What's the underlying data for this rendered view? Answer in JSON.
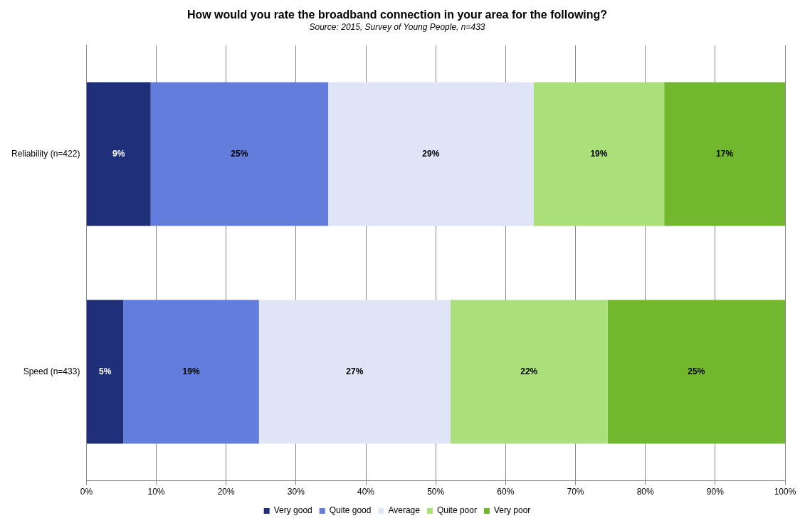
{
  "chart_data": {
    "type": "bar",
    "orientation": "horizontal",
    "stacked": true,
    "title": "How would you rate the broadband connection in your area for the following?",
    "subtitle": "Source: 2015, Survey of Young People, n=433",
    "categories": [
      "Reliability (n=422)",
      "Speed (n=433)"
    ],
    "series": [
      {
        "name": "Very good",
        "color": "#1f2f7a",
        "values": [
          9.2,
          5.3
        ],
        "value_labels": [
          "9%",
          "5%"
        ]
      },
      {
        "name": "Quite good",
        "color": "#627ddb",
        "values": [
          25.4,
          19.4
        ],
        "value_labels": [
          "25%",
          "19%"
        ]
      },
      {
        "name": "Average",
        "color": "#dfe4f7",
        "values": [
          29.4,
          27.4
        ],
        "value_labels": [
          "29%",
          "27%"
        ]
      },
      {
        "name": "Quite poor",
        "color": "#aadf7a",
        "values": [
          18.7,
          22.5
        ],
        "value_labels": [
          "19%",
          "22%"
        ]
      },
      {
        "name": "Very poor",
        "color": "#72b82e",
        "values": [
          17.3,
          25.4
        ],
        "value_labels": [
          "17%",
          "25%"
        ]
      }
    ],
    "xlim": [
      0,
      100
    ],
    "xticks": [
      {
        "value": 0,
        "label": "0%"
      },
      {
        "value": 10,
        "label": "10%"
      },
      {
        "value": 20,
        "label": "20%"
      },
      {
        "value": 30,
        "label": "30%"
      },
      {
        "value": 40,
        "label": "40%"
      },
      {
        "value": 50,
        "label": "50%"
      },
      {
        "value": 60,
        "label": "60%"
      },
      {
        "value": 70,
        "label": "70%"
      },
      {
        "value": 80,
        "label": "80%"
      },
      {
        "value": 90,
        "label": "90%"
      },
      {
        "value": 100,
        "label": "100%"
      }
    ],
    "grid": "x",
    "legend": "bottom"
  }
}
